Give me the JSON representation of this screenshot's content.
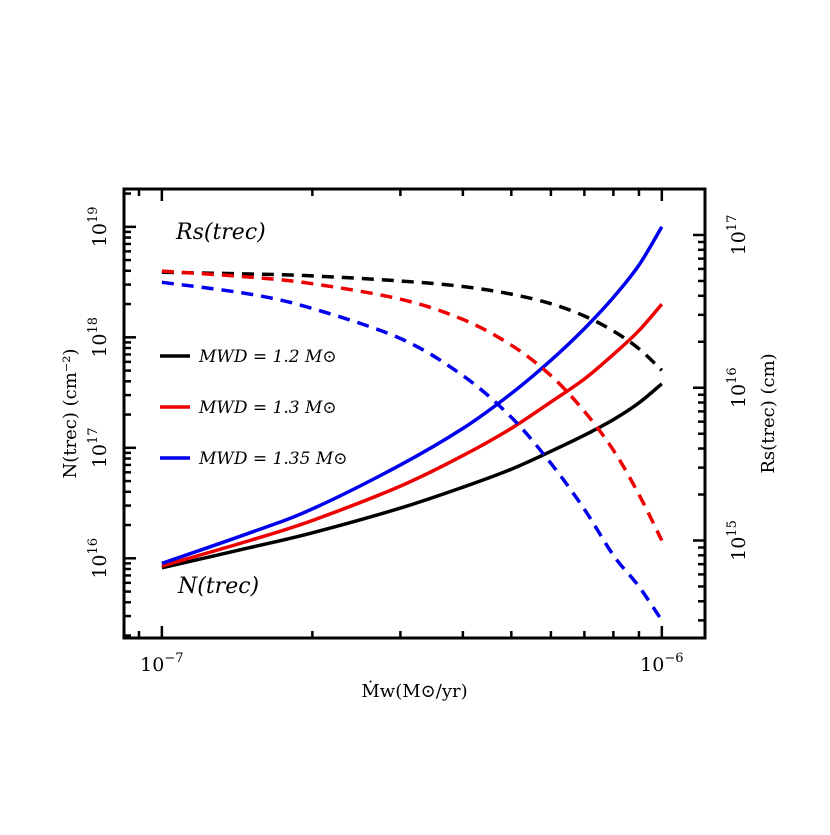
{
  "chart_data": {
    "type": "line",
    "title": "",
    "xlabel": "Ṁw(M⊙/yr)",
    "ylabel_left": "N(trec) (cm⁻²)",
    "ylabel_right": "Rs(trec) (cm)",
    "x_scale": "log",
    "y_left_scale": "log",
    "y_right_scale": "log",
    "xlim": [
      8.4e-08,
      1.22e-06
    ],
    "ylim_left": [
      1900000000000000.0,
      2.2e+19
    ],
    "ylim_right": [
      230000000000000.0,
      2e+17
    ],
    "x_ticklabels": [
      {
        "value": 1e-07,
        "base": "10",
        "exp": "−7"
      },
      {
        "value": 1e-06,
        "base": "10",
        "exp": "−6"
      }
    ],
    "y_left_ticklabels": [
      {
        "value": 1e+16,
        "base": "10",
        "exp": "16"
      },
      {
        "value": 1e+17,
        "base": "10",
        "exp": "17"
      },
      {
        "value": 1e+18,
        "base": "10",
        "exp": "18"
      },
      {
        "value": 1e+19,
        "base": "10",
        "exp": "19"
      }
    ],
    "y_right_ticklabels": [
      {
        "value": 1000000000000000.0,
        "base": "10",
        "exp": "15"
      },
      {
        "value": 1e+16,
        "base": "10",
        "exp": "16"
      },
      {
        "value": 1e+17,
        "base": "10",
        "exp": "17"
      }
    ],
    "grid": false,
    "legend_position": "center-left",
    "legend": [
      {
        "label": "MWD = 1.2 M⊙",
        "color": "#000000"
      },
      {
        "label": "MWD = 1.3 M⊙",
        "color": "#ee0000"
      },
      {
        "label": "MWD = 1.35 M⊙",
        "color": "#0000ee"
      }
    ],
    "annotations": [
      {
        "text": "Rs(trec)",
        "position": "upper-left"
      },
      {
        "text": "N(trec)",
        "position": "lower-left"
      }
    ],
    "x": [
      1e-07,
      1.5e-07,
      2e-07,
      3e-07,
      4e-07,
      5e-07,
      6e-07,
      7e-07,
      8e-07,
      9e-07,
      1e-06
    ],
    "series": [
      {
        "name": "MWD = 1.2 M⊙",
        "quantity": "N(trec)",
        "axis": "left",
        "color": "#000000",
        "style": "solid",
        "values": [
          8200000000000000.0,
          1.25e+16,
          1.7e+16,
          2.85e+16,
          4.4e+16,
          6.4e+16,
          9.3e+16,
          1.3e+17,
          1.8e+17,
          2.55e+17,
          3.8e+17
        ]
      },
      {
        "name": "MWD = 1.3 M⊙",
        "quantity": "N(trec)",
        "axis": "left",
        "color": "#ee0000",
        "style": "solid",
        "values": [
          8500000000000000.0,
          1.45e+16,
          2.2e+16,
          4.5e+16,
          8.5e+16,
          1.5e+17,
          2.6e+17,
          4.2e+17,
          7e+17,
          1.15e+18,
          2e+18
        ]
      },
      {
        "name": "MWD = 1.35 M⊙",
        "quantity": "N(trec)",
        "axis": "left",
        "color": "#0000ee",
        "style": "solid",
        "values": [
          9000000000000000.0,
          1.7e+16,
          2.8e+16,
          7e+16,
          1.5e+17,
          3.1e+17,
          6.2e+17,
          1.2e+18,
          2.3e+18,
          4.5e+18,
          1e+19
        ]
      },
      {
        "name": "MWD = 1.2 M⊙",
        "quantity": "Rs(trec)",
        "axis": "right",
        "color": "#000000",
        "style": "dashed",
        "values": [
          5.7e+16,
          5.55e+16,
          5.4e+16,
          5e+16,
          4.6e+16,
          4.1e+16,
          3.55e+16,
          2.95e+16,
          2.35e+16,
          1.8e+16,
          1.3e+16
        ]
      },
      {
        "name": "MWD = 1.3 M⊙",
        "quantity": "Rs(trec)",
        "axis": "right",
        "color": "#ee0000",
        "style": "dashed",
        "values": [
          5.8e+16,
          5.3e+16,
          4.8e+16,
          3.8e+16,
          2.8e+16,
          1.9e+16,
          1.2e+16,
          7000000000000000.0,
          3900000000000000.0,
          2000000000000000.0,
          1000000000000000.0
        ]
      },
      {
        "name": "MWD = 1.35 M⊙",
        "quantity": "Rs(trec)",
        "axis": "right",
        "color": "#0000ee",
        "style": "dashed",
        "values": [
          4.9e+16,
          4.1e+16,
          3.3e+16,
          2.1e+16,
          1.2e+16,
          6400000000000000.0,
          3200000000000000.0,
          1600000000000000.0,
          800000000000000.0,
          500000000000000.0,
          300000000000000.0
        ]
      }
    ]
  }
}
